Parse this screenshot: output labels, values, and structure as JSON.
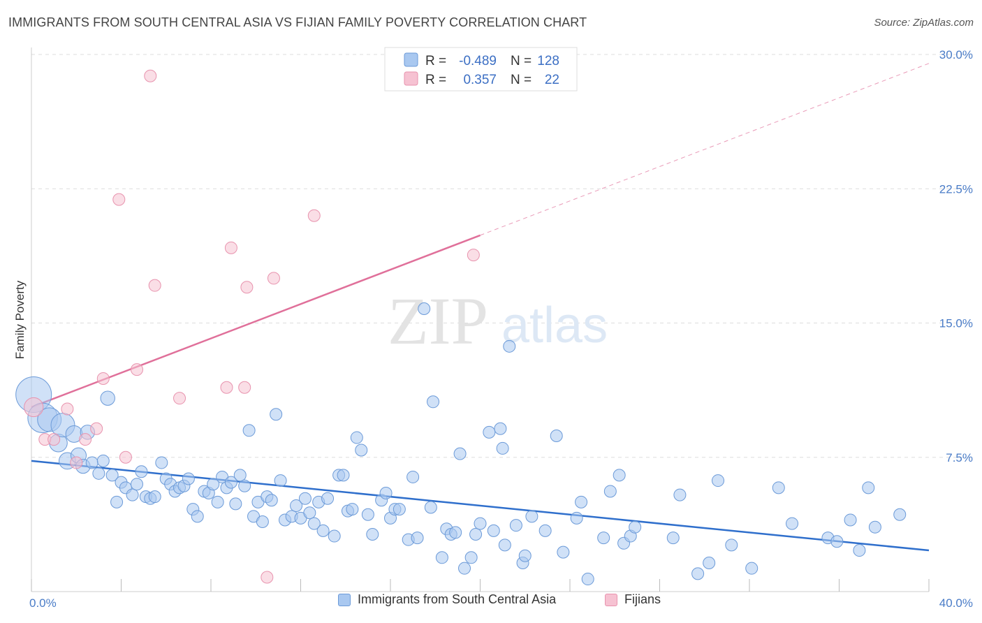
{
  "header": {
    "title": "IMMIGRANTS FROM SOUTH CENTRAL ASIA VS FIJIAN FAMILY POVERTY CORRELATION CHART",
    "source": "Source: ZipAtlas.com"
  },
  "watermark": {
    "zip": "ZIP",
    "atlas": "atlas"
  },
  "colors": {
    "blue_fill": "#a9c8f0",
    "blue_stroke": "#6b9ad8",
    "blue_line": "#2f6fcc",
    "pink_fill": "#f6c2d2",
    "pink_stroke": "#e893ae",
    "pink_line": "#e0709a",
    "grid": "#dddddd",
    "tick_text": "#4a7cc7"
  },
  "legend": {
    "rows": [
      {
        "r_label": "R =",
        "r_value": "-0.489",
        "n_label": "N =",
        "n_value": "128",
        "swatch": "blue"
      },
      {
        "r_label": "R =",
        "r_value": "0.357",
        "n_label": "N =",
        "n_value": "22",
        "swatch": "pink"
      }
    ]
  },
  "chart_data": {
    "type": "scatter",
    "title": "IMMIGRANTS FROM SOUTH CENTRAL ASIA VS FIJIAN FAMILY POVERTY CORRELATION CHART",
    "xlabel": "",
    "ylabel": "Family Poverty",
    "xlim": [
      0,
      40
    ],
    "ylim": [
      0,
      30
    ],
    "x_tick_labels": [
      "0.0%",
      "40.0%"
    ],
    "y_ticks": [
      7.5,
      15.0,
      22.5,
      30.0
    ],
    "y_tick_labels": [
      "7.5%",
      "15.0%",
      "22.5%",
      "30.0%"
    ],
    "grid": "horizontal dashed",
    "legend_position": "top-center",
    "series": [
      {
        "name": "Immigrants from South Central Asia",
        "color": "#a9c8f0",
        "trend": {
          "x": [
            0,
            40
          ],
          "y": [
            7.3,
            2.3
          ],
          "style": "solid"
        },
        "points": [
          [
            0.1,
            11.0,
            3
          ],
          [
            0.5,
            9.7,
            2.5
          ],
          [
            0.8,
            9.6,
            2
          ],
          [
            1.2,
            8.3,
            1.5
          ],
          [
            1.4,
            9.3,
            2
          ],
          [
            1.6,
            7.3,
            1.4
          ],
          [
            1.9,
            8.8,
            1.4
          ],
          [
            2.1,
            7.6,
            1.3
          ],
          [
            2.3,
            7.0,
            1.2
          ],
          [
            2.5,
            8.9,
            1.2
          ],
          [
            2.7,
            7.2,
            1
          ],
          [
            3.0,
            6.6,
            1
          ],
          [
            3.2,
            7.3,
            1
          ],
          [
            3.4,
            10.8,
            1.2
          ],
          [
            3.6,
            6.5,
            1
          ],
          [
            3.8,
            5.0,
            1
          ],
          [
            4.0,
            6.1,
            1
          ],
          [
            4.2,
            5.8,
            1
          ],
          [
            4.5,
            5.4,
            1
          ],
          [
            4.7,
            6.0,
            1
          ],
          [
            4.9,
            6.7,
            1
          ],
          [
            5.1,
            5.3,
            1
          ],
          [
            5.3,
            5.2,
            1
          ],
          [
            5.5,
            5.3,
            1
          ],
          [
            5.8,
            7.2,
            1
          ],
          [
            6.0,
            6.3,
            1
          ],
          [
            6.2,
            6.0,
            1
          ],
          [
            6.4,
            5.6,
            1
          ],
          [
            6.6,
            5.8,
            1
          ],
          [
            6.8,
            5.9,
            1
          ],
          [
            7.0,
            6.3,
            1
          ],
          [
            7.2,
            4.6,
            1
          ],
          [
            7.4,
            4.2,
            1
          ],
          [
            7.7,
            5.6,
            1
          ],
          [
            7.9,
            5.5,
            1
          ],
          [
            8.1,
            6.0,
            1
          ],
          [
            8.3,
            5.0,
            1
          ],
          [
            8.5,
            6.4,
            1
          ],
          [
            8.7,
            5.8,
            1
          ],
          [
            8.9,
            6.1,
            1
          ],
          [
            9.1,
            4.9,
            1
          ],
          [
            9.3,
            6.5,
            1
          ],
          [
            9.5,
            5.9,
            1
          ],
          [
            9.7,
            9.0,
            1
          ],
          [
            9.9,
            4.2,
            1
          ],
          [
            10.1,
            5.0,
            1
          ],
          [
            10.3,
            3.9,
            1
          ],
          [
            10.5,
            5.3,
            1
          ],
          [
            10.7,
            5.1,
            1
          ],
          [
            10.9,
            9.9,
            1
          ],
          [
            11.1,
            6.2,
            1
          ],
          [
            11.3,
            4.0,
            1
          ],
          [
            11.6,
            4.2,
            1
          ],
          [
            11.8,
            4.8,
            1
          ],
          [
            12.0,
            4.1,
            1
          ],
          [
            12.2,
            5.2,
            1
          ],
          [
            12.4,
            4.4,
            1
          ],
          [
            12.6,
            3.8,
            1
          ],
          [
            12.8,
            5.0,
            1
          ],
          [
            13.0,
            3.4,
            1
          ],
          [
            13.2,
            5.2,
            1
          ],
          [
            13.5,
            3.1,
            1
          ],
          [
            13.7,
            6.5,
            1
          ],
          [
            13.9,
            6.5,
            1
          ],
          [
            14.1,
            4.5,
            1
          ],
          [
            14.3,
            4.6,
            1
          ],
          [
            14.5,
            8.6,
            1
          ],
          [
            14.7,
            7.9,
            1
          ],
          [
            15.0,
            4.3,
            1
          ],
          [
            15.2,
            3.2,
            1
          ],
          [
            15.6,
            5.1,
            1
          ],
          [
            15.8,
            5.5,
            1
          ],
          [
            16.0,
            4.1,
            1
          ],
          [
            16.2,
            4.6,
            1
          ],
          [
            16.4,
            4.6,
            1
          ],
          [
            16.8,
            2.9,
            1
          ],
          [
            17.0,
            6.4,
            1
          ],
          [
            17.2,
            3.0,
            1
          ],
          [
            17.5,
            15.8,
            1
          ],
          [
            17.8,
            4.7,
            1
          ],
          [
            17.9,
            10.6,
            1
          ],
          [
            18.3,
            1.9,
            1
          ],
          [
            18.5,
            3.5,
            1
          ],
          [
            18.7,
            3.2,
            1
          ],
          [
            18.9,
            3.3,
            1
          ],
          [
            19.1,
            7.7,
            1
          ],
          [
            19.3,
            1.3,
            1
          ],
          [
            19.6,
            1.9,
            1
          ],
          [
            19.8,
            3.2,
            1
          ],
          [
            20.0,
            3.8,
            1
          ],
          [
            20.4,
            8.9,
            1
          ],
          [
            20.6,
            3.4,
            1
          ],
          [
            20.9,
            9.1,
            1
          ],
          [
            21.1,
            2.6,
            1
          ],
          [
            21.3,
            13.7,
            1
          ],
          [
            21.6,
            3.7,
            1
          ],
          [
            21.9,
            1.6,
            1
          ],
          [
            22.0,
            2.0,
            1
          ],
          [
            22.3,
            4.2,
            1
          ],
          [
            22.9,
            3.4,
            1
          ],
          [
            23.4,
            8.7,
            1
          ],
          [
            23.7,
            2.2,
            1
          ],
          [
            24.3,
            4.1,
            1
          ],
          [
            24.5,
            5.0,
            1
          ],
          [
            24.8,
            0.7,
            1
          ],
          [
            25.5,
            3.0,
            1
          ],
          [
            25.8,
            5.6,
            1
          ],
          [
            26.2,
            6.5,
            1
          ],
          [
            26.4,
            2.7,
            1
          ],
          [
            26.7,
            3.1,
            1
          ],
          [
            26.9,
            3.6,
            1
          ],
          [
            28.6,
            3.0,
            1
          ],
          [
            28.9,
            5.4,
            1
          ],
          [
            29.7,
            1.0,
            1
          ],
          [
            30.2,
            1.6,
            1
          ],
          [
            30.6,
            6.2,
            1
          ],
          [
            31.2,
            2.6,
            1
          ],
          [
            32.1,
            1.3,
            1
          ],
          [
            33.3,
            5.8,
            1
          ],
          [
            33.9,
            3.8,
            1
          ],
          [
            35.5,
            3.0,
            1
          ],
          [
            35.9,
            2.8,
            1
          ],
          [
            36.5,
            4.0,
            1
          ],
          [
            36.9,
            2.3,
            1
          ],
          [
            37.3,
            5.8,
            1
          ],
          [
            37.6,
            3.6,
            1
          ],
          [
            38.7,
            4.3,
            1
          ],
          [
            21.0,
            8.0,
            1
          ]
        ]
      },
      {
        "name": "Fijians",
        "color": "#f6c2d2",
        "trend": {
          "x": [
            0,
            40
          ],
          "y": [
            10.3,
            29.5
          ],
          "solid_until_x": 20.0,
          "style": "solid then dashed"
        },
        "points": [
          [
            0.1,
            10.3,
            1.6
          ],
          [
            0.6,
            8.5,
            1
          ],
          [
            1.0,
            8.5,
            1
          ],
          [
            1.6,
            10.2,
            1
          ],
          [
            2.0,
            7.2,
            1
          ],
          [
            2.4,
            8.5,
            1
          ],
          [
            2.9,
            9.1,
            1
          ],
          [
            3.2,
            11.9,
            1
          ],
          [
            3.9,
            21.9,
            1
          ],
          [
            4.2,
            7.5,
            1
          ],
          [
            4.7,
            12.4,
            1
          ],
          [
            5.3,
            28.8,
            1
          ],
          [
            5.5,
            17.1,
            1
          ],
          [
            6.6,
            10.8,
            1
          ],
          [
            8.7,
            11.4,
            1
          ],
          [
            8.9,
            19.2,
            1
          ],
          [
            9.6,
            17.0,
            1
          ],
          [
            9.5,
            11.4,
            1
          ],
          [
            10.8,
            17.5,
            1
          ],
          [
            10.5,
            0.8,
            1
          ],
          [
            12.6,
            21.0,
            1
          ],
          [
            19.7,
            18.8,
            1
          ]
        ]
      }
    ]
  },
  "bottom_legend": {
    "items": [
      {
        "label": "Immigrants from South Central Asia",
        "swatch": "blue"
      },
      {
        "label": "Fijians",
        "swatch": "pink"
      }
    ]
  }
}
